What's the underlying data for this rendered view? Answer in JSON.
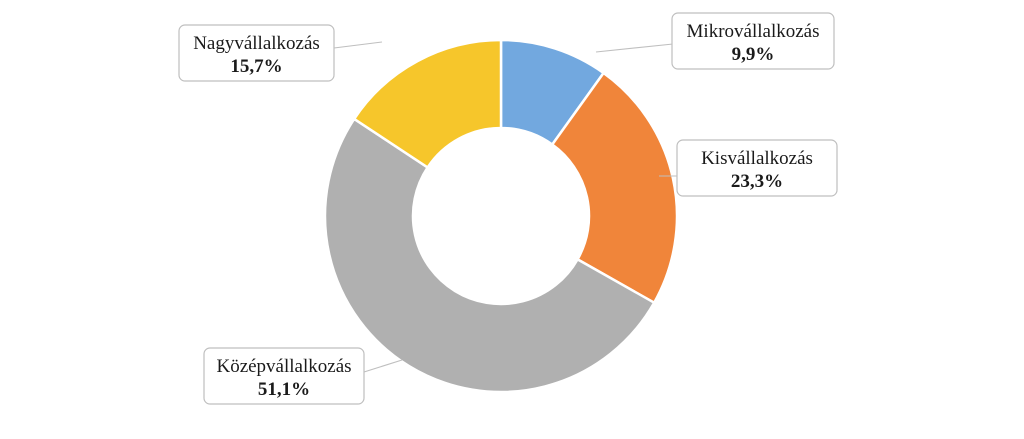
{
  "chart_data": {
    "type": "pie",
    "variant": "donut",
    "title": "",
    "legend": "none",
    "slices": [
      {
        "label": "Mikrovállalkozás",
        "value": 9.9,
        "value_label": "9,9%",
        "color": "#72a8df"
      },
      {
        "label": "Kisvállalkozás",
        "value": 23.3,
        "value_label": "23,3%",
        "color": "#f0853a"
      },
      {
        "label": "Középvállalkozás",
        "value": 51.1,
        "value_label": "51,1%",
        "color": "#b0b0b0"
      },
      {
        "label": "Nagyvállalkozás",
        "value": 15.7,
        "value_label": "15,7%",
        "color": "#f6c62b"
      }
    ]
  }
}
